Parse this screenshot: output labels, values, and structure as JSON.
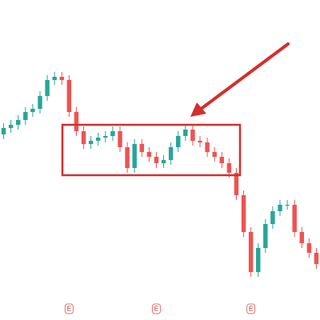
{
  "chart_data": {
    "type": "candlestick",
    "open": [
      58,
      60,
      61,
      62.5,
      65,
      66,
      70,
      75,
      76,
      75,
      65,
      59,
      55,
      56,
      57,
      57.5,
      59,
      54,
      47.5,
      55,
      52.5,
      51,
      49,
      50,
      54,
      57.5,
      59.5,
      56,
      55.5,
      52.5,
      51,
      49,
      46,
      39,
      27.5,
      15,
      22.5,
      30,
      34,
      36,
      36,
      27.5,
      24,
      21
    ],
    "high": [
      61.5,
      62.5,
      64,
      66.5,
      67.5,
      71.5,
      76.5,
      77.5,
      77.5,
      76.5,
      66.5,
      60.5,
      57.5,
      58.5,
      59,
      60.5,
      60.5,
      55.5,
      56.5,
      56.5,
      54,
      52.5,
      51.5,
      55.5,
      59,
      61,
      61,
      57.5,
      57,
      54,
      52.5,
      50.5,
      47.5,
      40.5,
      29,
      24,
      31.5,
      35.5,
      37.5,
      37.5,
      37.5,
      29,
      25.5,
      22.5
    ],
    "low": [
      56.5,
      58.5,
      59.5,
      61,
      63.5,
      64.5,
      68.5,
      73.5,
      73.5,
      63.5,
      57.5,
      53.5,
      53.5,
      54.5,
      55.5,
      56,
      52.5,
      46,
      46,
      51,
      49.5,
      47.5,
      47.5,
      48.5,
      52.5,
      56,
      54.5,
      54,
      51,
      49.5,
      47.5,
      44.5,
      37.5,
      26,
      13.5,
      13.5,
      21,
      28.5,
      32.5,
      34.5,
      26,
      22.5,
      19.5,
      16
    ],
    "close": [
      60,
      61,
      62.5,
      65,
      66,
      70,
      75,
      76,
      75,
      65,
      59,
      55,
      56,
      57,
      57.5,
      59,
      54,
      47.5,
      55,
      52.5,
      51,
      49,
      50,
      54,
      57.5,
      59.5,
      56,
      55.5,
      52.5,
      51,
      49,
      46,
      39,
      27.5,
      15,
      22.5,
      30,
      34,
      36,
      36,
      27.5,
      24,
      21,
      17.5
    ],
    "up_color": "#26a69a",
    "down_color": "#ef5350",
    "ylim": [
      0,
      100
    ],
    "events": [
      {
        "x": 9,
        "label": "E"
      },
      {
        "x": 21,
        "label": "E"
      },
      {
        "x": 34,
        "label": "E"
      }
    ]
  }
}
